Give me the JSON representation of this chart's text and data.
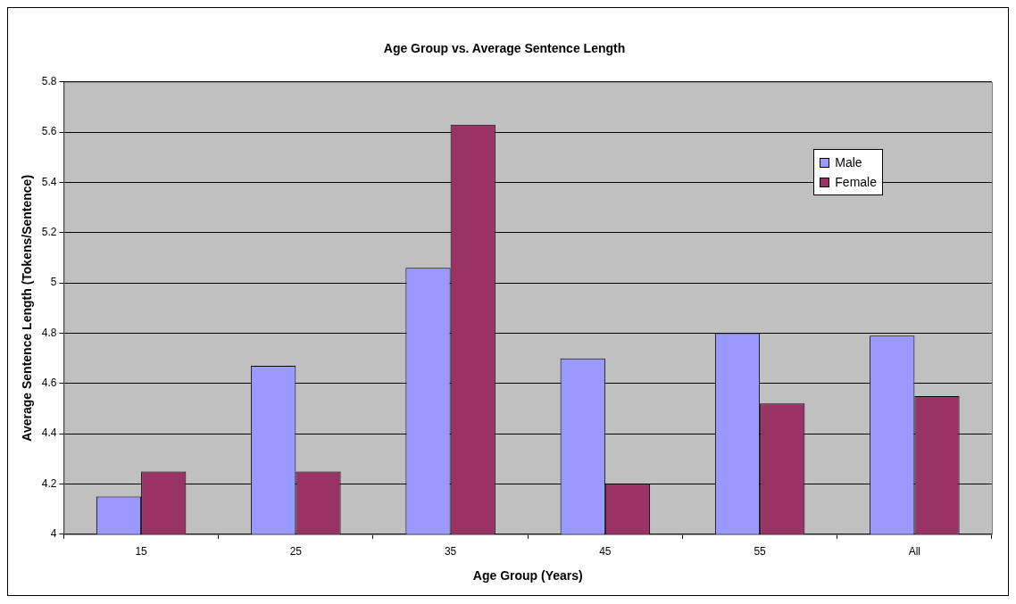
{
  "chart_data": {
    "type": "bar",
    "title": "Age Group vs. Average Sentence Length",
    "xlabel": "Age Group (Years)",
    "ylabel": "Average Sentence Length (Tokens/Sentence)",
    "categories": [
      "15",
      "25",
      "35",
      "45",
      "55",
      "All"
    ],
    "series": [
      {
        "name": "Male",
        "color": "#9999ff",
        "values": [
          4.15,
          4.67,
          5.06,
          4.7,
          4.8,
          4.79
        ]
      },
      {
        "name": "Female",
        "color": "#993366",
        "values": [
          4.25,
          4.25,
          5.63,
          4.2,
          4.52,
          4.55
        ]
      }
    ],
    "ylim": [
      4,
      5.8
    ],
    "yticks": [
      4,
      4.2,
      4.4,
      4.6,
      4.8,
      5,
      5.2,
      5.4,
      5.6,
      5.8
    ],
    "grid": "y",
    "legend": "top right"
  }
}
